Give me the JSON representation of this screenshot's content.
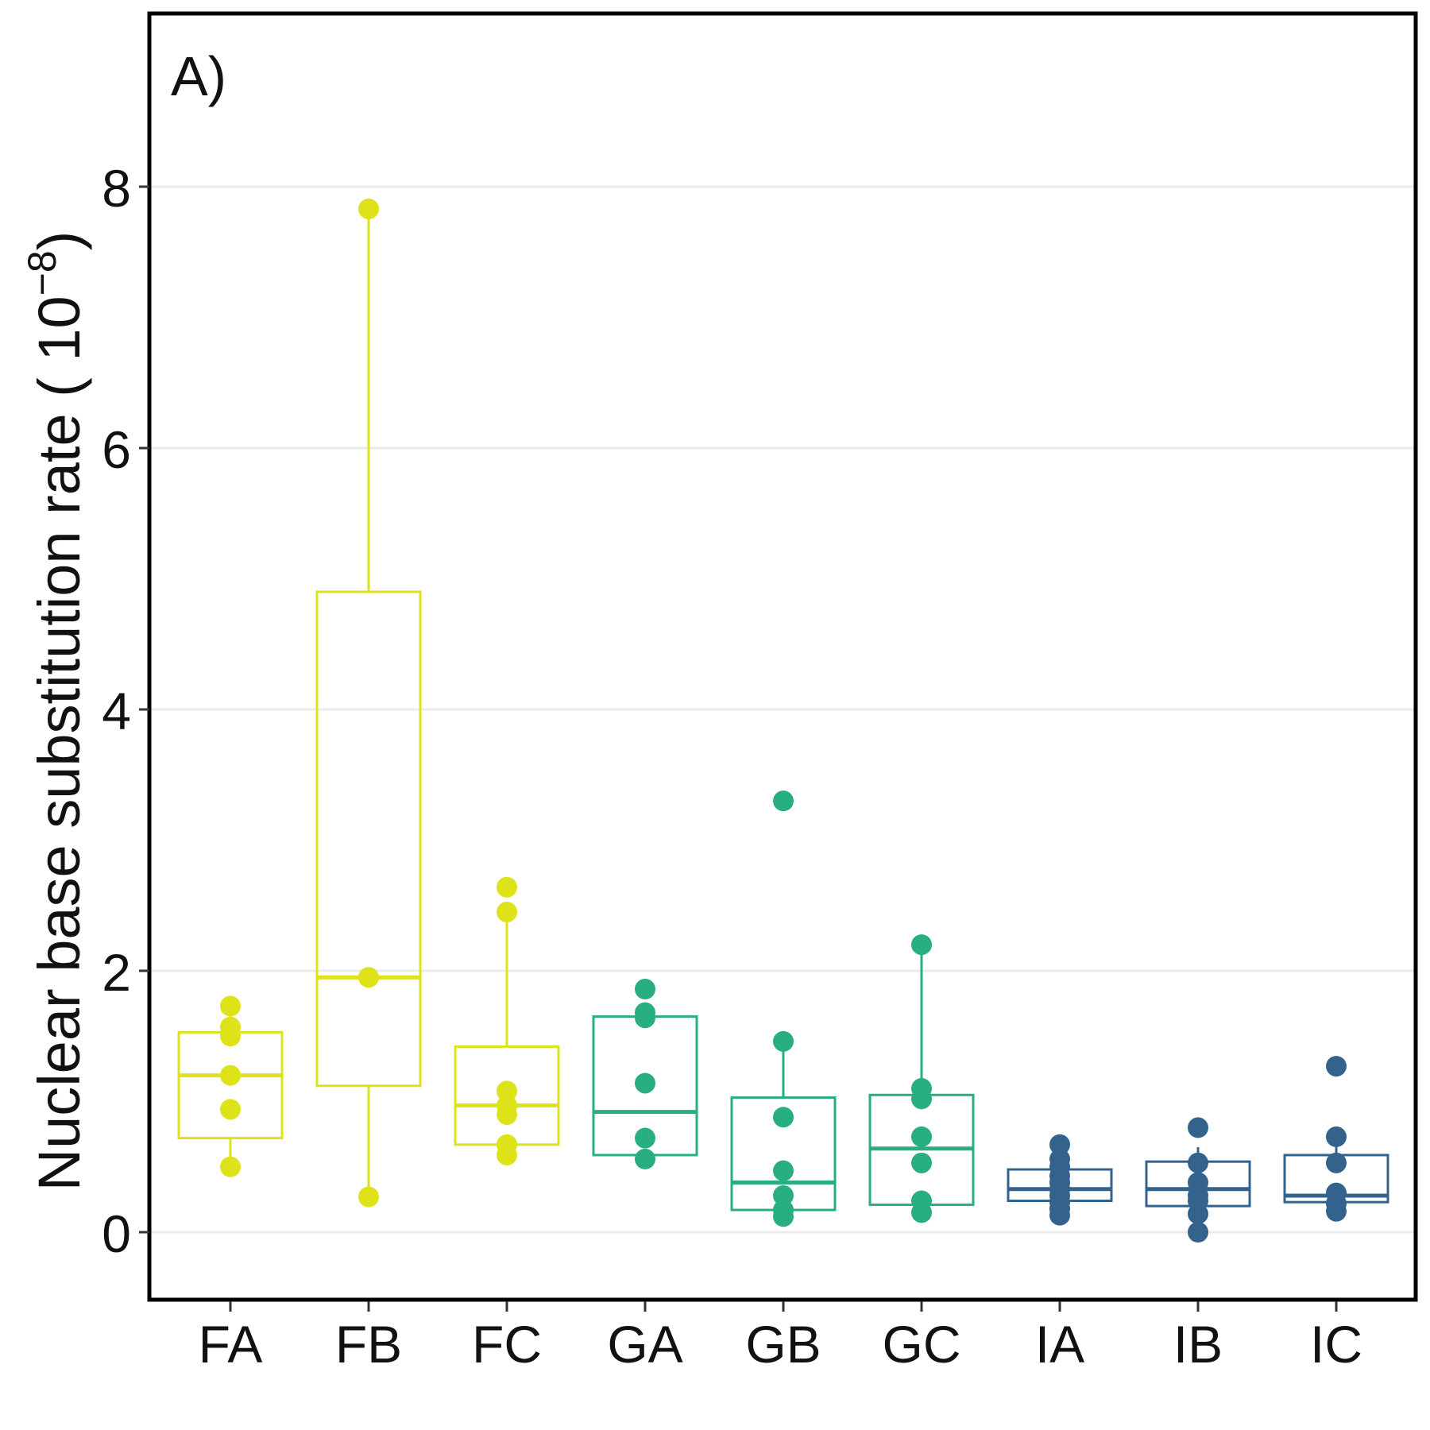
{
  "chart_data": {
    "type": "box",
    "panel_label": "A)",
    "ylabel": "Nuclear base substitution rate ( 10",
    "ylabel_exponent": "−8",
    "ylabel_close": ")",
    "ylim": [
      -0.5,
      9.3
    ],
    "yticks": [
      0,
      2,
      4,
      6,
      8
    ],
    "grid": "horizontal major",
    "legend": "none",
    "categories": [
      "FA",
      "FB",
      "FC",
      "GA",
      "GB",
      "GC",
      "IA",
      "IB",
      "IC"
    ],
    "colors": [
      "#dde318",
      "#dde318",
      "#dde318",
      "#29af7f",
      "#29af7f",
      "#29af7f",
      "#33638d",
      "#33638d",
      "#33638d"
    ],
    "boxes": [
      {
        "q1": 0.72,
        "median": 1.2,
        "q3": 1.53,
        "whisker_low": 0.5,
        "whisker_high": 1.73
      },
      {
        "q1": 1.12,
        "median": 1.95,
        "q3": 4.9,
        "whisker_low": 0.27,
        "whisker_high": 7.83
      },
      {
        "q1": 0.67,
        "median": 0.97,
        "q3": 1.42,
        "whisker_low": 0.67,
        "whisker_high": 2.45
      },
      {
        "q1": 0.59,
        "median": 0.92,
        "q3": 1.65,
        "whisker_low": 0.59,
        "whisker_high": 1.65
      },
      {
        "q1": 0.17,
        "median": 0.38,
        "q3": 1.03,
        "whisker_low": 0.17,
        "whisker_high": 1.46
      },
      {
        "q1": 0.21,
        "median": 0.64,
        "q3": 1.05,
        "whisker_low": 0.21,
        "whisker_high": 2.2
      },
      {
        "q1": 0.24,
        "median": 0.33,
        "q3": 0.48,
        "whisker_low": 0.24,
        "whisker_high": 0.48
      },
      {
        "q1": 0.2,
        "median": 0.33,
        "q3": 0.54,
        "whisker_low": 0.2,
        "whisker_high": 0.65
      },
      {
        "q1": 0.23,
        "median": 0.28,
        "q3": 0.59,
        "whisker_low": 0.23,
        "whisker_high": 0.72
      }
    ],
    "points": [
      [
        0.5,
        0.94,
        1.2,
        1.5,
        1.57,
        1.73
      ],
      [
        0.27,
        1.95,
        7.83
      ],
      [
        0.59,
        0.67,
        0.9,
        0.97,
        1.08,
        2.45,
        2.64
      ],
      [
        0.56,
        0.72,
        1.14,
        1.64,
        1.68,
        1.86
      ],
      [
        0.12,
        0.17,
        0.28,
        0.47,
        0.88,
        1.46,
        3.3
      ],
      [
        0.15,
        0.24,
        0.53,
        0.73,
        1.02,
        1.1,
        2.2
      ],
      [
        0.13,
        0.18,
        0.23,
        0.28,
        0.33,
        0.38,
        0.43,
        0.5,
        0.56,
        0.67
      ],
      [
        0.0,
        0.14,
        0.24,
        0.28,
        0.38,
        0.53,
        0.8
      ],
      [
        0.16,
        0.22,
        0.3,
        0.53,
        0.73,
        1.27
      ]
    ]
  }
}
